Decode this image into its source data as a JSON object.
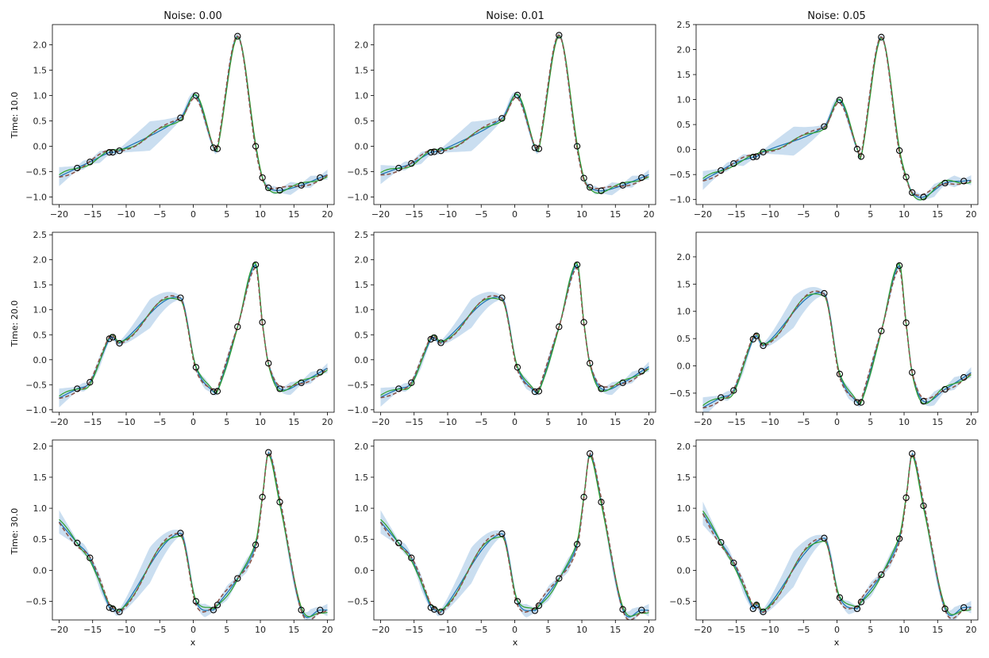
{
  "figure": {
    "column_titles": [
      "Noise: 0.00",
      "Noise: 0.01",
      "Noise: 0.05"
    ],
    "row_labels": [
      "Time: 10.0",
      "Time: 20.0",
      "Time: 30.0"
    ],
    "xlabel": "x",
    "colors": {
      "mean": "#1f77b4",
      "band": "#9ec3e4",
      "green": "#2ca02c",
      "dashed": "#8c564b",
      "marker_edge": "#000000",
      "frame": "#000000"
    }
  },
  "chart_data": [
    {
      "type": "line",
      "title": "Noise: 0.00",
      "row": "Time: 10.0",
      "xlim": [
        -21,
        21
      ],
      "ylim": [
        -1.15,
        2.4
      ],
      "xticks": [
        -20,
        -15,
        -10,
        -5,
        0,
        5,
        10,
        15,
        20
      ],
      "yticks": [
        -1.0,
        -0.5,
        0.0,
        0.5,
        1.0,
        1.5,
        2.0
      ],
      "observations": {
        "x": [
          -17.3,
          -15.4,
          -12.5,
          -12.0,
          -11.0,
          -1.9,
          0.4,
          3.0,
          3.6,
          6.6,
          9.3,
          10.3,
          11.2,
          12.9,
          16.1,
          18.9
        ],
        "y": [
          -0.43,
          -0.31,
          -0.12,
          -0.12,
          -0.09,
          0.56,
          1.0,
          -0.03,
          -0.05,
          2.17,
          0.0,
          -0.62,
          -0.82,
          -0.87,
          -0.77,
          -0.62
        ]
      }
    },
    {
      "type": "line",
      "title": "Noise: 0.01",
      "row": "Time: 10.0",
      "xlim": [
        -21,
        21
      ],
      "ylim": [
        -1.15,
        2.4
      ],
      "xticks": [
        -20,
        -15,
        -10,
        -5,
        0,
        5,
        10,
        15,
        20
      ],
      "yticks": [
        -1.0,
        -0.5,
        0.0,
        0.5,
        1.0,
        1.5,
        2.0
      ],
      "observations": {
        "x": [
          -17.3,
          -15.4,
          -12.5,
          -12.0,
          -11.0,
          -1.9,
          0.4,
          3.0,
          3.6,
          6.6,
          9.3,
          10.3,
          11.2,
          12.9,
          16.1,
          18.9
        ],
        "y": [
          -0.43,
          -0.34,
          -0.12,
          -0.11,
          -0.09,
          0.55,
          1.01,
          -0.03,
          -0.05,
          2.19,
          0.0,
          -0.63,
          -0.81,
          -0.88,
          -0.77,
          -0.62
        ]
      }
    },
    {
      "type": "line",
      "title": "Noise: 0.05",
      "row": "Time: 10.0",
      "xlim": [
        -21,
        21
      ],
      "ylim": [
        -1.1,
        2.5
      ],
      "xticks": [
        -20,
        -15,
        -10,
        -5,
        0,
        5,
        10,
        15,
        20
      ],
      "yticks": [
        -1.0,
        -0.5,
        0.0,
        0.5,
        1.0,
        1.5,
        2.0,
        2.5
      ],
      "observations": {
        "x": [
          -17.3,
          -15.4,
          -12.5,
          -12.0,
          -11.0,
          -1.9,
          0.4,
          3.0,
          3.6,
          6.6,
          9.3,
          10.3,
          11.2,
          12.9,
          16.1,
          18.9
        ],
        "y": [
          -0.42,
          -0.28,
          -0.15,
          -0.14,
          -0.05,
          0.46,
          0.99,
          0.01,
          -0.14,
          2.25,
          -0.02,
          -0.55,
          -0.86,
          -0.95,
          -0.67,
          -0.63
        ]
      }
    },
    {
      "type": "line",
      "title": "Noise: 0.00",
      "row": "Time: 20.0",
      "xlim": [
        -21,
        21
      ],
      "ylim": [
        -1.05,
        2.55
      ],
      "xticks": [
        -20,
        -15,
        -10,
        -5,
        0,
        5,
        10,
        15,
        20
      ],
      "yticks": [
        -1.0,
        -0.5,
        0.0,
        0.5,
        1.0,
        1.5,
        2.0,
        2.5
      ],
      "observations": {
        "x": [
          -17.3,
          -15.4,
          -12.5,
          -12.0,
          -11.0,
          -1.9,
          0.4,
          3.0,
          3.6,
          6.6,
          9.3,
          10.3,
          11.2,
          12.9,
          16.1,
          18.9
        ],
        "y": [
          -0.58,
          -0.45,
          0.42,
          0.45,
          0.33,
          1.24,
          -0.15,
          -0.64,
          -0.63,
          0.66,
          1.9,
          0.75,
          -0.07,
          -0.58,
          -0.46,
          -0.25
        ]
      }
    },
    {
      "type": "line",
      "title": "Noise: 0.01",
      "row": "Time: 20.0",
      "xlim": [
        -21,
        21
      ],
      "ylim": [
        -1.05,
        2.55
      ],
      "xticks": [
        -20,
        -15,
        -10,
        -5,
        0,
        5,
        10,
        15,
        20
      ],
      "yticks": [
        -1.0,
        -0.5,
        0.0,
        0.5,
        1.0,
        1.5,
        2.0,
        2.5
      ],
      "observations": {
        "x": [
          -17.3,
          -15.4,
          -12.5,
          -12.0,
          -11.0,
          -1.9,
          0.4,
          3.0,
          3.6,
          6.6,
          9.3,
          10.3,
          11.2,
          12.9,
          16.1,
          18.9
        ],
        "y": [
          -0.58,
          -0.46,
          0.41,
          0.44,
          0.34,
          1.24,
          -0.15,
          -0.64,
          -0.63,
          0.66,
          1.9,
          0.75,
          -0.07,
          -0.58,
          -0.46,
          -0.23
        ]
      }
    },
    {
      "type": "line",
      "title": "Noise: 0.05",
      "row": "Time: 20.0",
      "xlim": [
        -21,
        21
      ],
      "ylim": [
        -0.85,
        2.45
      ],
      "xticks": [
        -20,
        -15,
        -10,
        -5,
        0,
        5,
        10,
        15,
        20
      ],
      "yticks": [
        -0.5,
        0.0,
        0.5,
        1.0,
        1.5,
        2.0
      ],
      "observations": {
        "x": [
          -17.3,
          -15.4,
          -12.5,
          -12.0,
          -11.0,
          -1.9,
          0.4,
          3.0,
          3.6,
          6.6,
          9.3,
          10.3,
          11.2,
          12.9,
          16.1,
          18.9
        ],
        "y": [
          -0.58,
          -0.45,
          0.49,
          0.55,
          0.37,
          1.33,
          -0.15,
          -0.67,
          -0.67,
          0.64,
          1.84,
          0.79,
          -0.12,
          -0.65,
          -0.43,
          -0.21
        ]
      }
    },
    {
      "type": "line",
      "title": "Noise: 0.00",
      "row": "Time: 30.0",
      "xlim": [
        -21,
        21
      ],
      "ylim": [
        -0.8,
        2.1
      ],
      "xticks": [
        -20,
        -15,
        -10,
        -5,
        0,
        5,
        10,
        15,
        20
      ],
      "yticks": [
        -0.5,
        0.0,
        0.5,
        1.0,
        1.5,
        2.0
      ],
      "observations": {
        "x": [
          -17.3,
          -15.4,
          -12.5,
          -12.0,
          -11.0,
          -1.9,
          0.4,
          3.0,
          3.6,
          6.6,
          9.3,
          10.3,
          11.2,
          12.9,
          16.1,
          18.9
        ],
        "y": [
          0.44,
          0.2,
          -0.6,
          -0.62,
          -0.67,
          0.6,
          -0.5,
          -0.64,
          -0.56,
          -0.13,
          0.41,
          1.18,
          1.9,
          1.1,
          -0.64,
          -0.64
        ]
      }
    },
    {
      "type": "line",
      "title": "Noise: 0.01",
      "row": "Time: 30.0",
      "xlim": [
        -21,
        21
      ],
      "ylim": [
        -0.8,
        2.1
      ],
      "xticks": [
        -20,
        -15,
        -10,
        -5,
        0,
        5,
        10,
        15,
        20
      ],
      "yticks": [
        -0.5,
        0.0,
        0.5,
        1.0,
        1.5,
        2.0
      ],
      "observations": {
        "x": [
          -17.3,
          -15.4,
          -12.5,
          -12.0,
          -11.0,
          -1.9,
          0.4,
          3.0,
          3.6,
          6.6,
          9.3,
          10.3,
          11.2,
          12.9,
          16.1,
          18.9
        ],
        "y": [
          0.44,
          0.2,
          -0.6,
          -0.63,
          -0.67,
          0.59,
          -0.5,
          -0.65,
          -0.57,
          -0.13,
          0.42,
          1.18,
          1.88,
          1.1,
          -0.63,
          -0.64
        ]
      }
    },
    {
      "type": "line",
      "title": "Noise: 0.05",
      "row": "Time: 30.0",
      "xlim": [
        -21,
        21
      ],
      "ylim": [
        -0.8,
        2.1
      ],
      "xticks": [
        -20,
        -15,
        -10,
        -5,
        0,
        5,
        10,
        15,
        20
      ],
      "yticks": [
        -0.5,
        0.0,
        0.5,
        1.0,
        1.5,
        2.0
      ],
      "observations": {
        "x": [
          -17.3,
          -15.4,
          -12.5,
          -12.0,
          -11.0,
          -1.9,
          0.4,
          3.0,
          3.6,
          6.6,
          9.3,
          10.3,
          11.2,
          12.9,
          16.1,
          18.9
        ],
        "y": [
          0.45,
          0.12,
          -0.62,
          -0.56,
          -0.67,
          0.52,
          -0.44,
          -0.62,
          -0.51,
          -0.07,
          0.51,
          1.17,
          1.88,
          1.04,
          -0.62,
          -0.6
        ]
      }
    }
  ]
}
